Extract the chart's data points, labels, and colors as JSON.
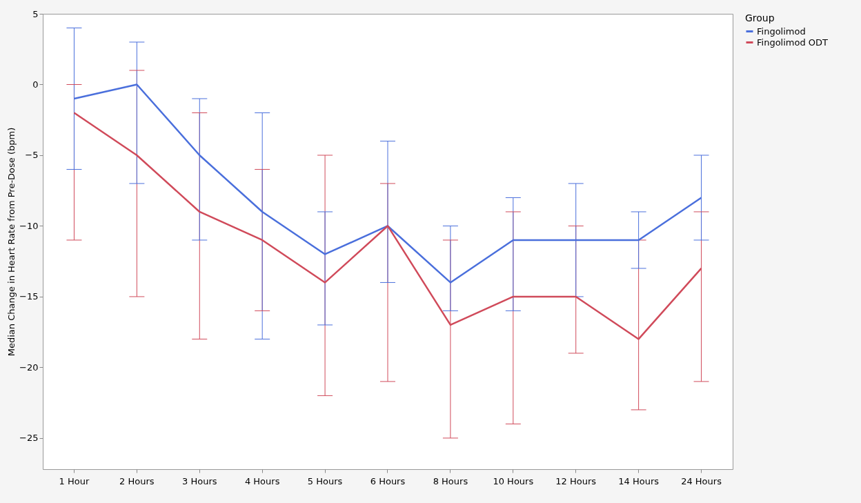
{
  "chart_data": {
    "type": "line",
    "ylabel": "Median Change in Heart Rate from Pre-Dose (bpm)",
    "legend_title": "Group",
    "legend": "top right",
    "grid": false,
    "marker": "none",
    "ylim": [
      -27.2,
      5
    ],
    "yticks": [
      5,
      0,
      -5,
      -10,
      -15,
      -20,
      -25
    ],
    "categories": [
      "1 Hour",
      "2 Hours",
      "3 Hours",
      "4 Hours",
      "5 Hours",
      "6 Hours",
      "8 Hours",
      "10 Hours",
      "12 Hours",
      "14 Hours",
      "24 Hours"
    ],
    "series": [
      {
        "name": "Fingolimod",
        "color": "#4a6fdc",
        "values": [
          -1,
          0,
          -5,
          -9,
          -12,
          -10,
          -14,
          -11,
          -11,
          -11,
          -8
        ],
        "errors": [
          [
            -6,
            4
          ],
          [
            -7,
            3
          ],
          [
            -11,
            -1
          ],
          [
            -18,
            -2
          ],
          [
            -17,
            -9
          ],
          [
            -14,
            -4
          ],
          [
            -16,
            -10
          ],
          [
            -16,
            -8
          ],
          [
            -15,
            -7
          ],
          [
            -13,
            -9
          ],
          [
            -11,
            -5
          ]
        ]
      },
      {
        "name": "Fingolimod ODT",
        "color": "#d04a5a",
        "values": [
          -2,
          -5,
          -9,
          -11,
          -14,
          -10,
          -17,
          -15,
          -15,
          -18,
          -13
        ],
        "errors": [
          [
            -11,
            0
          ],
          [
            -15,
            1
          ],
          [
            -18,
            -2
          ],
          [
            -16,
            -6
          ],
          [
            -22,
            -5
          ],
          [
            -21,
            -7
          ],
          [
            -25,
            -11
          ],
          [
            -24,
            -9
          ],
          [
            -19,
            -10
          ],
          [
            -23,
            -11
          ],
          [
            -21,
            -9
          ]
        ]
      }
    ]
  }
}
